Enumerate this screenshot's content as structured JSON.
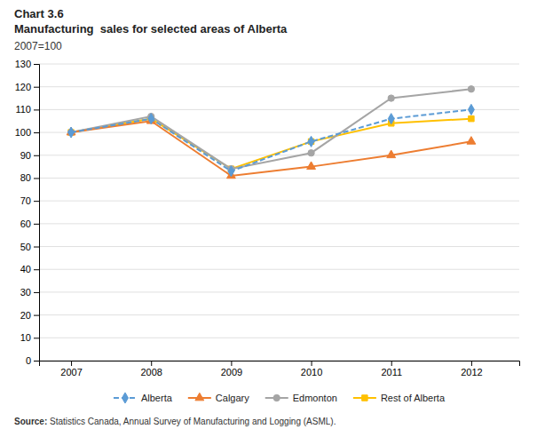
{
  "chart_data": {
    "type": "line",
    "title": [
      "Chart 3.6",
      "Manufacturing  sales for selected areas of Alberta"
    ],
    "subtitle": "2007=100",
    "annotations": [
      "Source:",
      " Statistics Canada, Annual Survey of Manufacturing and Logging (ASML)."
    ],
    "x": [
      2007,
      2008,
      2009,
      2010,
      2011,
      2012
    ],
    "series": [
      {
        "name": "Alberta",
        "color": "#5b9bd5",
        "marker": "diamond",
        "line_style": "dashed",
        "values": [
          100,
          106,
          83,
          96,
          106,
          110
        ]
      },
      {
        "name": "Calgary",
        "color": "#ed7d31",
        "marker": "triangle",
        "line_style": "solid",
        "values": [
          100,
          105,
          81,
          85,
          90,
          96
        ]
      },
      {
        "name": "Edmonton",
        "color": "#a5a5a5",
        "marker": "circle",
        "line_style": "solid",
        "values": [
          100,
          107,
          84,
          91,
          115,
          119
        ]
      },
      {
        "name": "Rest of Alberta",
        "color": "#ffc000",
        "marker": "square",
        "line_style": "solid",
        "values": [
          100,
          106,
          84,
          96,
          104,
          106
        ]
      }
    ],
    "xlim": [
      2006.6,
      2012.6
    ],
    "xticks": [
      2007,
      2008,
      2009,
      2010,
      2011,
      2012
    ],
    "ylim": [
      0,
      130
    ],
    "yticks": [
      0,
      10,
      20,
      30,
      40,
      50,
      60,
      70,
      80,
      90,
      100,
      110,
      120,
      130
    ],
    "grid": true,
    "legend": "bottom"
  }
}
